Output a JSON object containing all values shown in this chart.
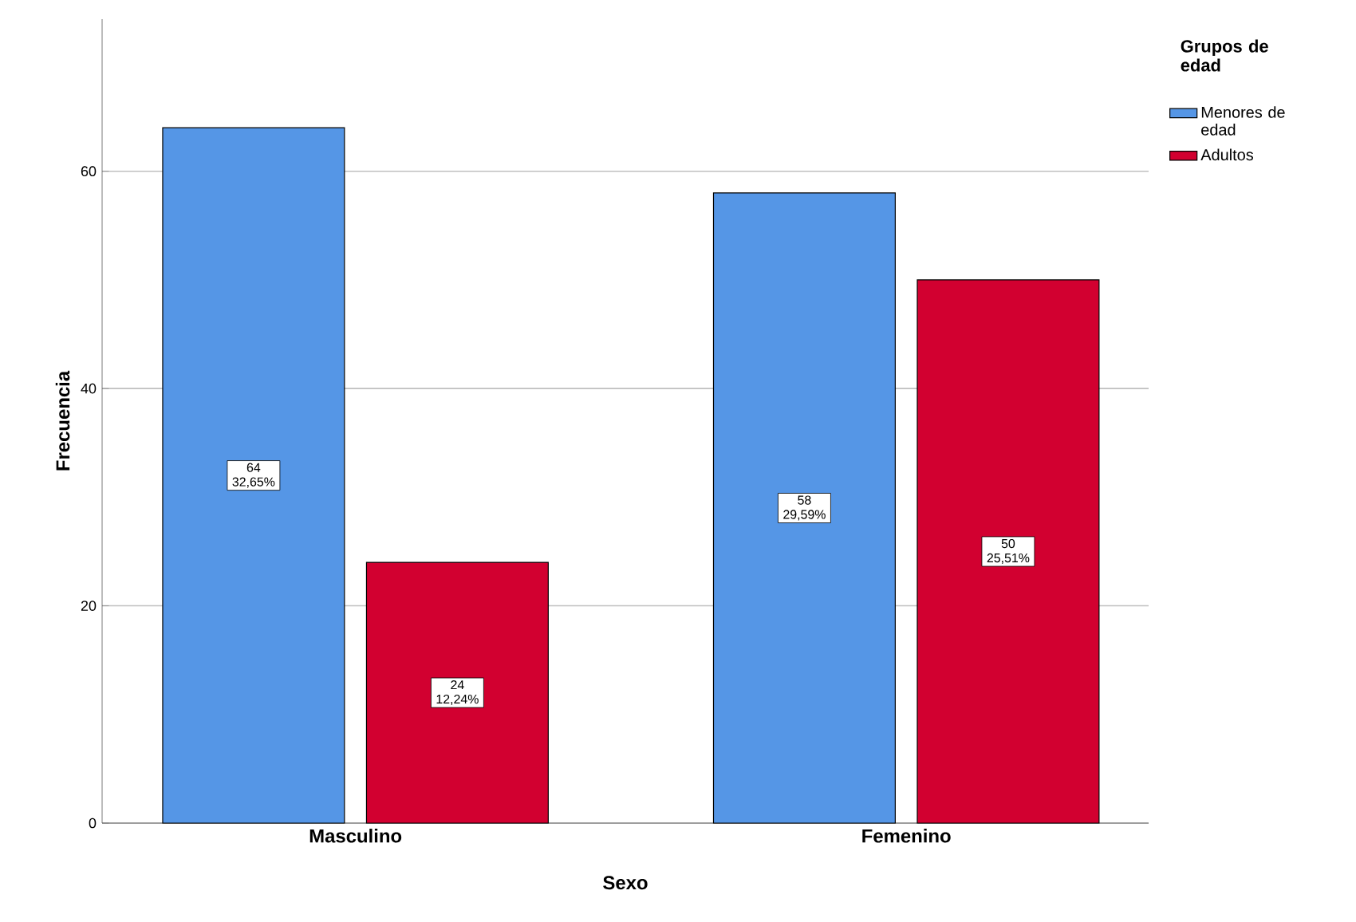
{
  "chart_data": {
    "type": "bar",
    "xlabel": "Sexo",
    "ylabel": "Frecuencia",
    "legend_title": "Grupos de edad",
    "categories": [
      "Masculino",
      "Femenino"
    ],
    "series": [
      {
        "name": "Menores de edad",
        "color": "#5596e6",
        "values": [
          64,
          58
        ],
        "value_labels": [
          "64 32,65%",
          "58 29,59%"
        ]
      },
      {
        "name": "Adultos",
        "color": "#d20030",
        "values": [
          24,
          50
        ],
        "value_labels": [
          "24 12,24%",
          "50 25,51%"
        ]
      }
    ],
    "ylim": [
      0,
      74
    ],
    "yticks": [
      0,
      20,
      40,
      60
    ],
    "grid": "y",
    "legend": "top right"
  }
}
